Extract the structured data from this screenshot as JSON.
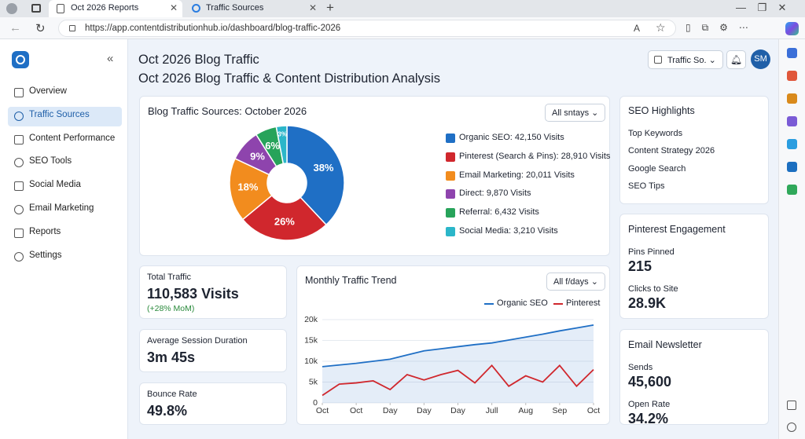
{
  "browser": {
    "tabs": [
      "Oct 2026 Reports",
      "Traffic Sources"
    ],
    "url": "https://app.contentdistributionhub.io/dashboard/blog-traffic-2026"
  },
  "sidebar": {
    "items": [
      "Overview",
      "Traffic Sources",
      "Content Performance",
      "SEO Tools",
      "Social Media",
      "Email Marketing",
      "Reports",
      "Settings"
    ]
  },
  "header": {
    "title": "Oct 2026 Blog Traffic",
    "subtitle": "Oct 2026 Blog Traffic & Content Distribution Analysis",
    "filter": "Traffic So.",
    "avatar": "SM"
  },
  "chart_data": [
    {
      "type": "pie",
      "title": "Blog Traffic Sources: October 2026",
      "filter": "All sntays",
      "categories": [
        "Organic SEO: 42,150 Visits",
        "Pinterest (Search & Pins): 28,910 Visits",
        "Email Marketing: 20,011 Visits",
        "Direct: 9,870 Visits",
        "Referral: 6,432 Visits",
        "Social Media: 3,210 Visits"
      ],
      "values": [
        38,
        26,
        18,
        9,
        6,
        3
      ],
      "value_labels": [
        "38%",
        "26%",
        "18%",
        "9%",
        "6%",
        "3%"
      ],
      "colors": [
        "#1f6fc5",
        "#d0272d",
        "#f28c1e",
        "#8e44ad",
        "#27a35a",
        "#2bb6c9"
      ]
    },
    {
      "type": "line",
      "title": "Monthly Traffic Trend",
      "filter": "All f/days",
      "x": [
        0,
        0.5,
        1,
        1.5,
        2,
        2.5,
        3,
        3.5,
        4,
        4.5,
        5,
        5.5,
        6,
        6.5,
        7,
        7.5,
        8
      ],
      "xlim": [
        0,
        8
      ],
      "xticks": [
        {
          "value": 0,
          "label": "Oct"
        },
        {
          "value": 1,
          "label": "Oct"
        },
        {
          "value": 2,
          "label": "Day"
        },
        {
          "value": 3,
          "label": "Day"
        },
        {
          "value": 4,
          "label": "Day"
        },
        {
          "value": 5,
          "label": "Jull"
        },
        {
          "value": 6,
          "label": "Aug"
        },
        {
          "value": 7,
          "label": "Sep"
        },
        {
          "value": 8,
          "label": "Oct"
        }
      ],
      "ylim": [
        0,
        20000
      ],
      "yticks": [
        0,
        {
          "value": 5000,
          "label": "5k"
        },
        {
          "value": 10000,
          "label": "10k"
        },
        {
          "value": 15000,
          "label": "15k"
        },
        {
          "value": 20000,
          "label": "20k"
        }
      ],
      "series": [
        {
          "name": "Organic SEO",
          "color": "#1f6fc5",
          "values": [
            8700,
            9100,
            9500,
            10000,
            10500,
            11500,
            12500,
            13000,
            13500,
            14000,
            14400,
            15100,
            15800,
            16500,
            17300,
            18000,
            18700
          ]
        },
        {
          "name": "Pinterest",
          "color": "#d0272d",
          "values": [
            1800,
            4500,
            4800,
            5300,
            3200,
            6800,
            5500,
            6800,
            7800,
            4800,
            9000,
            4000,
            6500,
            5000,
            9000,
            4000,
            8000
          ]
        }
      ]
    }
  ],
  "kpis": [
    {
      "label": "Total Traffic",
      "value": "110,583 Visits",
      "change": "(+28% MoM)"
    },
    {
      "label": "Average Session Duration",
      "value": "3m 45s"
    },
    {
      "label": "Bounce Rate",
      "value": "49.8%"
    }
  ],
  "seo_highlights": {
    "title": "SEO Highlights",
    "items": [
      "Top Keywords",
      "Content Strategy 2026",
      "Google Search",
      "SEO Tips"
    ]
  },
  "pinterest": {
    "title": "Pinterest Engagement",
    "metrics": [
      {
        "label": "Pins Pinned",
        "value": "215"
      },
      {
        "label": "Clicks to Site",
        "value": "28.9K"
      }
    ]
  },
  "email": {
    "title": "Email Newsletter",
    "metrics": [
      {
        "label": "Sends",
        "value": "45,600"
      },
      {
        "label": "Open Rate",
        "value": "34.2%"
      }
    ]
  }
}
